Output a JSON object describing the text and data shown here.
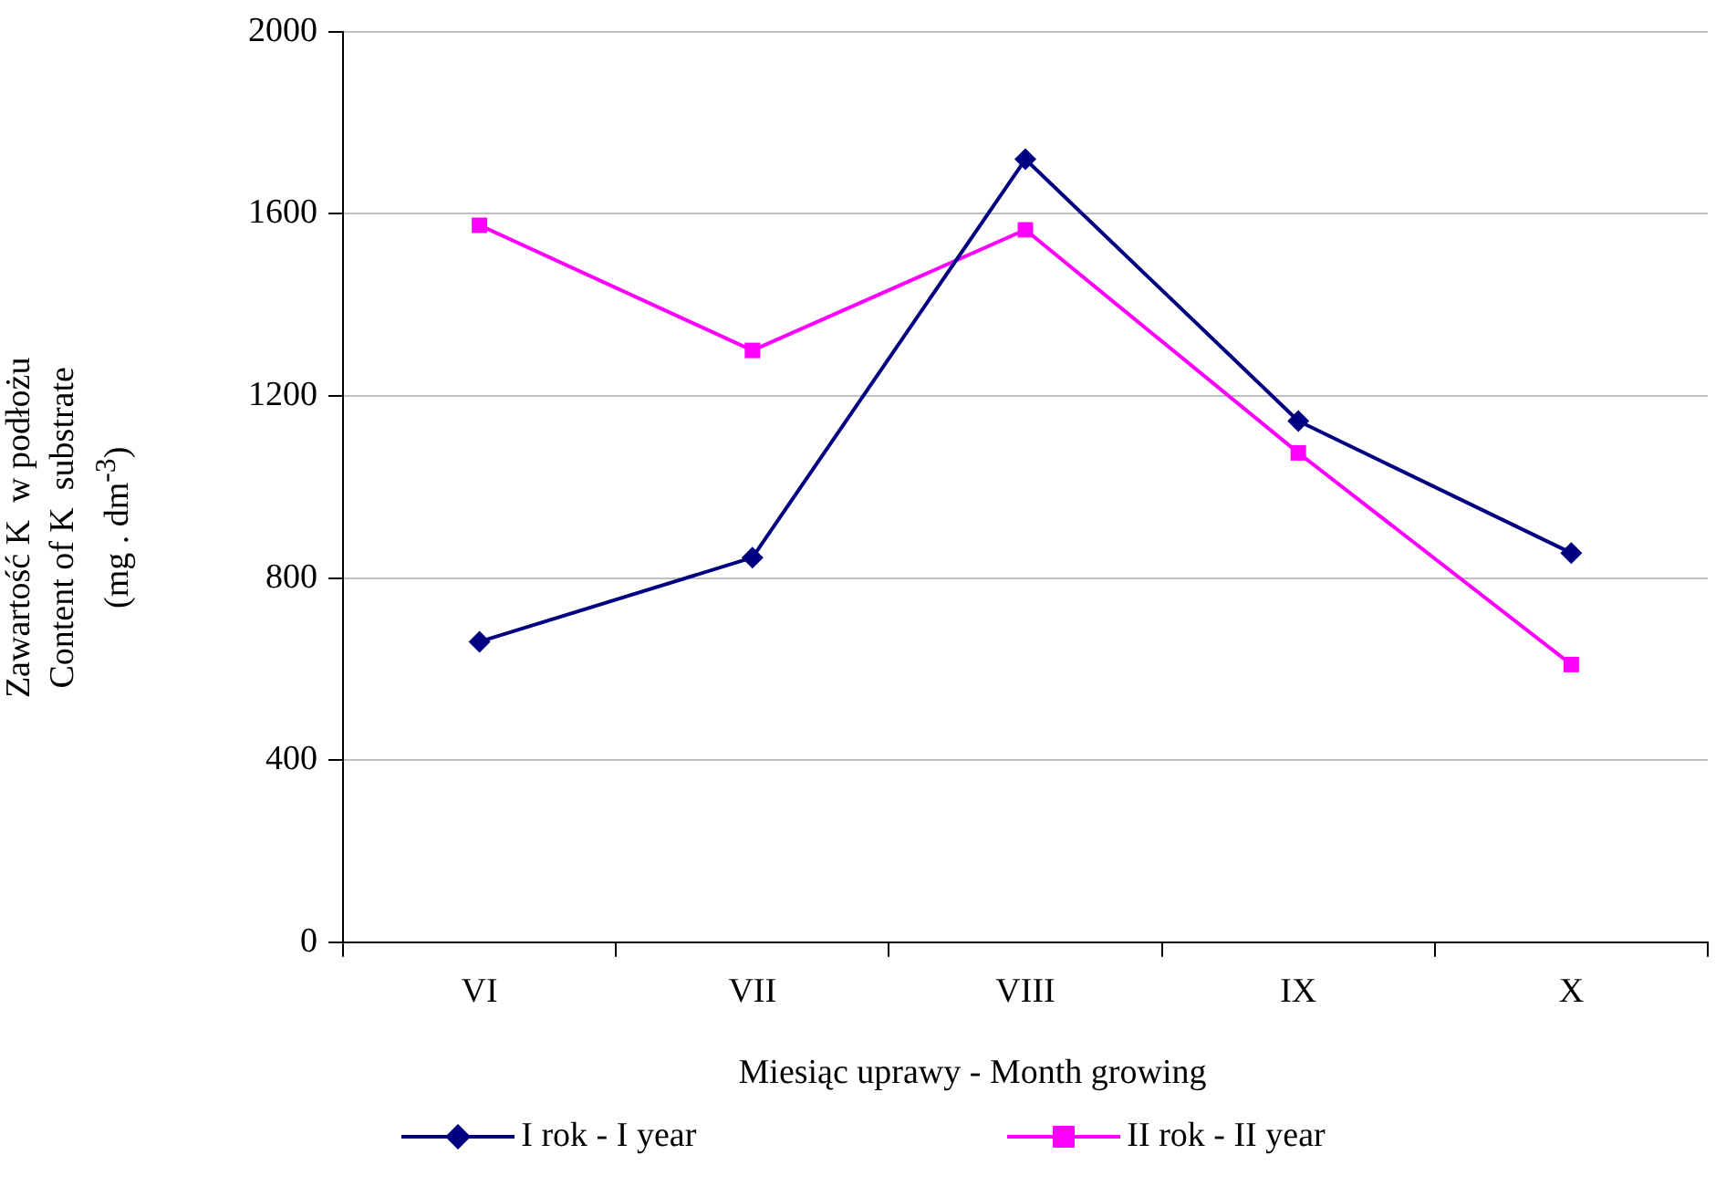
{
  "chart_data": {
    "type": "line",
    "xlabel": "Miesiąc uprawy - Month growing",
    "ylabel": "Zawartość K  w podłożu\nContent of K  substrate\n(mg . dm$^{-3}$)",
    "categories": [
      "VI",
      "VII",
      "VIII",
      "IX",
      "X"
    ],
    "series": [
      {
        "name": "I rok - I year",
        "color": "#000080",
        "marker": "diamond",
        "values": [
          660,
          845,
          1720,
          1145,
          855
        ]
      },
      {
        "name": "II rok - II year",
        "color": "#ff00ff",
        "marker": "square",
        "values": [
          1575,
          1300,
          1565,
          1075,
          610
        ]
      }
    ],
    "ylim": [
      0,
      2000
    ],
    "yticks": [
      0,
      400,
      800,
      1200,
      1600,
      2000
    ],
    "grid": "y",
    "legend": "bottom",
    "line_style": "solid"
  }
}
